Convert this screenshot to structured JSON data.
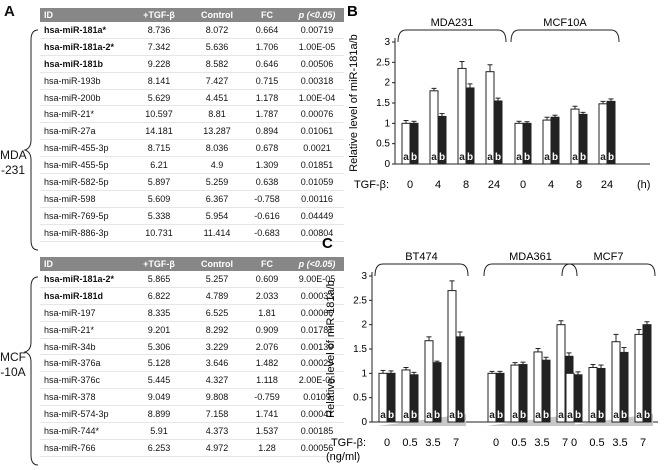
{
  "panelA": {
    "letter": "A",
    "headers": [
      "ID",
      "+TGF-β",
      "Control",
      "FC",
      "p (<0.05)"
    ],
    "mda_group": {
      "label_line1": "MDA",
      "label_line2": "-231",
      "rows": [
        {
          "id": "hsa-miR-181a*",
          "tgf": "8.736",
          "control": "8.072",
          "fc": "0.664",
          "p": "0.00719",
          "bold": true
        },
        {
          "id": "hsa-miR-181a-2*",
          "tgf": "7.342",
          "control": "5.636",
          "fc": "1.706",
          "p": "1.00E-05",
          "bold": true
        },
        {
          "id": "hsa-miR-181b",
          "tgf": "9.228",
          "control": "8.582",
          "fc": "0.646",
          "p": "0.00506",
          "bold": true
        },
        {
          "id": "hsa-miR-193b",
          "tgf": "8.141",
          "control": "7.427",
          "fc": "0.715",
          "p": "0.00318",
          "bold": false
        },
        {
          "id": "hsa-miR-200b",
          "tgf": "5.629",
          "control": "4.451",
          "fc": "1.178",
          "p": "1.00E-04",
          "bold": false
        },
        {
          "id": "hsa-miR-21*",
          "tgf": "10.597",
          "control": "8.81",
          "fc": "1.787",
          "p": "0.00076",
          "bold": false
        },
        {
          "id": "hsa-miR-27a",
          "tgf": "14.181",
          "control": "13.287",
          "fc": "0.894",
          "p": "0.01061",
          "bold": false
        },
        {
          "id": "hsa-miR-455-3p",
          "tgf": "8.715",
          "control": "8.036",
          "fc": "0.678",
          "p": "0.0021",
          "bold": false
        },
        {
          "id": "hsa-miR-455-5p",
          "tgf": "6.21",
          "control": "4.9",
          "fc": "1.309",
          "p": "0.01851",
          "bold": false
        },
        {
          "id": "hsa-miR-582-5p",
          "tgf": "5.897",
          "control": "5.259",
          "fc": "0.638",
          "p": "0.01059",
          "bold": false
        },
        {
          "id": "hsa-miR-598",
          "tgf": "5.609",
          "control": "6.367",
          "fc": "-0.758",
          "p": "0.00116",
          "bold": false
        },
        {
          "id": "hsa-miR-769-5p",
          "tgf": "5.338",
          "control": "5.954",
          "fc": "-0.616",
          "p": "0.04449",
          "bold": false
        },
        {
          "id": "hsa-miR-886-3p",
          "tgf": "10.731",
          "control": "11.414",
          "fc": "-0.683",
          "p": "0.00804",
          "bold": false
        }
      ]
    },
    "mcf_group": {
      "label_line1": "MCF",
      "label_line2": "-10A",
      "rows": [
        {
          "id": "hsa-miR-181a-2*",
          "tgf": "5.865",
          "control": "5.257",
          "fc": "0.609",
          "p": "9.00E-05",
          "bold": true
        },
        {
          "id": "hsa-miR-181d",
          "tgf": "6.822",
          "control": "4.789",
          "fc": "2.033",
          "p": "0.00033",
          "bold": true
        },
        {
          "id": "hsa-miR-197",
          "tgf": "8.335",
          "control": "6.525",
          "fc": "1.81",
          "p": "0.00066",
          "bold": false
        },
        {
          "id": "hsa-miR-21*",
          "tgf": "9.201",
          "control": "8.292",
          "fc": "0.909",
          "p": "0.01781",
          "bold": false
        },
        {
          "id": "hsa-miR-34b",
          "tgf": "5.306",
          "control": "3.229",
          "fc": "2.076",
          "p": "0.00139",
          "bold": false
        },
        {
          "id": "hsa-miR-376a",
          "tgf": "5.128",
          "control": "3.646",
          "fc": "1.482",
          "p": "0.00029",
          "bold": false
        },
        {
          "id": "hsa-miR-376c",
          "tgf": "5.445",
          "control": "4.327",
          "fc": "1.118",
          "p": "2.00E-05",
          "bold": false
        },
        {
          "id": "hsa-miR-378",
          "tgf": "9.049",
          "control": "9.808",
          "fc": "-0.759",
          "p": "0.0109",
          "bold": false
        },
        {
          "id": "hsa-miR-574-3p",
          "tgf": "8.899",
          "control": "7.158",
          "fc": "1.741",
          "p": "0.00041",
          "bold": false
        },
        {
          "id": "hsa-miR-744*",
          "tgf": "5.91",
          "control": "4.373",
          "fc": "1.537",
          "p": "0.00185",
          "bold": false
        },
        {
          "id": "hsa-miR-766",
          "tgf": "6.253",
          "control": "4.972",
          "fc": "1.28",
          "p": "0.00056",
          "bold": false
        }
      ]
    }
  },
  "chart_data": [
    {
      "panel": "B",
      "type": "bar",
      "ylabel": "Relative level of miR-181a/b",
      "ylim": [
        0,
        3
      ],
      "yticks": [
        "0",
        "0.5",
        "1",
        "1.5",
        "2",
        "2.5",
        "3"
      ],
      "xlabel_prefix": "TGF-β:",
      "x_unit": "(h)",
      "groups": [
        {
          "name": "MDA231",
          "categories": [
            "0",
            "4",
            "8",
            "24"
          ],
          "a": [
            1.0,
            1.8,
            2.35,
            2.27
          ],
          "b": [
            1.0,
            1.17,
            1.87,
            1.55
          ],
          "a_err": [
            0.07,
            0.06,
            0.17,
            0.17
          ],
          "b_err": [
            0.05,
            0.07,
            0.1,
            0.07
          ]
        },
        {
          "name": "MCF10A",
          "categories": [
            "0",
            "4",
            "8",
            "24"
          ],
          "a": [
            1.0,
            1.08,
            1.35,
            1.48
          ],
          "b": [
            1.0,
            1.15,
            1.22,
            1.54
          ],
          "a_err": [
            0.05,
            0.07,
            0.07,
            0.06
          ],
          "b_err": [
            0.04,
            0.05,
            0.05,
            0.06
          ]
        }
      ],
      "series": [
        {
          "name": "a",
          "color": "#ffffff"
        },
        {
          "name": "b",
          "color": "#222222"
        }
      ]
    },
    {
      "panel": "C",
      "type": "bar",
      "ylabel": "Relative level of miR-181a/b",
      "ylim": [
        0,
        3
      ],
      "yticks": [
        "0",
        "0.5",
        "1",
        "1.5",
        "2",
        "2.5",
        "3"
      ],
      "xlabel_prefix": "TGF-β:",
      "x_unit": "(ng/ml)",
      "groups": [
        {
          "name": "BT474",
          "categories": [
            "0",
            "0.5",
            "3.5",
            "7"
          ],
          "a": [
            1.0,
            1.07,
            1.67,
            2.7
          ],
          "b": [
            1.0,
            0.97,
            1.22,
            1.75
          ],
          "a_err": [
            0.06,
            0.05,
            0.08,
            0.2
          ],
          "b_err": [
            0.05,
            0.05,
            0.03,
            0.1
          ]
        },
        {
          "name": "MDA361",
          "categories": [
            "0",
            "0.5",
            "3.5",
            "7"
          ],
          "a": [
            1.0,
            1.17,
            1.44,
            2.0
          ],
          "b": [
            1.0,
            1.18,
            1.27,
            1.35
          ],
          "a_err": [
            0.04,
            0.05,
            0.07,
            0.08
          ],
          "b_err": [
            0.04,
            0.05,
            0.06,
            0.07
          ]
        },
        {
          "name": "MCF7",
          "categories": [
            "0",
            "0.5",
            "3.5",
            "7"
          ],
          "a": [
            1.0,
            1.12,
            1.65,
            1.8
          ],
          "b": [
            0.97,
            1.1,
            1.43,
            2.0
          ],
          "a_err": [
            0.06,
            0.06,
            0.15,
            0.1
          ],
          "b_err": [
            0.06,
            0.07,
            0.1,
            0.06
          ]
        }
      ],
      "series": [
        {
          "name": "a",
          "color": "#ffffff"
        },
        {
          "name": "b",
          "color": "#222222"
        }
      ]
    }
  ]
}
